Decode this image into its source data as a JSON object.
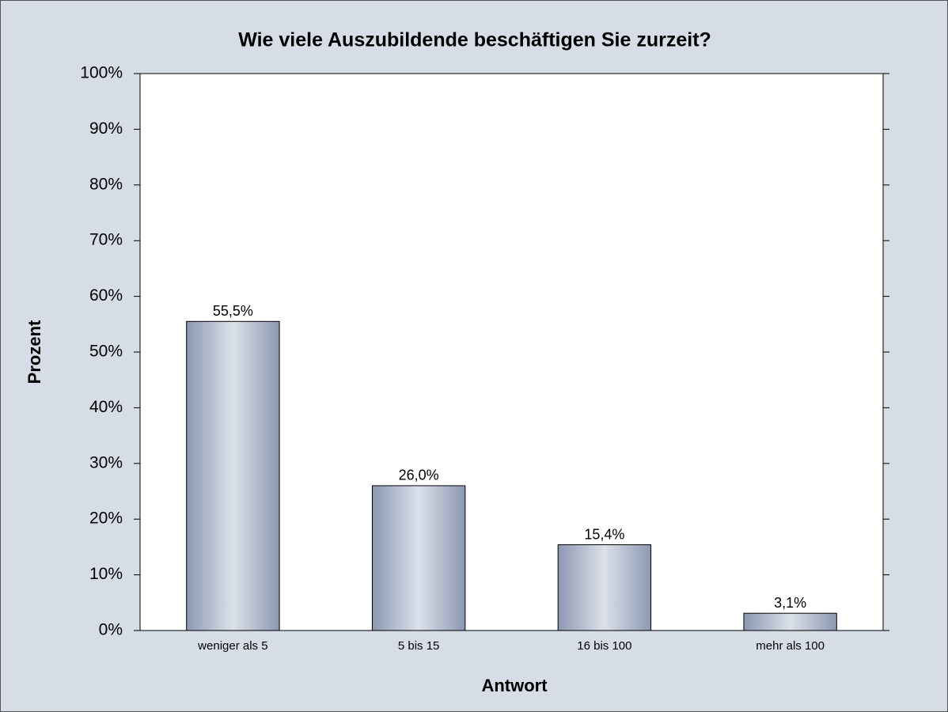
{
  "chart_data": {
    "type": "bar",
    "title": "Wie viele Auszubildende beschäftigen Sie zurzeit?",
    "x_label": "Antwort",
    "y_label": "Prozent",
    "categories": [
      "weniger als 5",
      "5 bis 15",
      "16 bis 100",
      "mehr als 100"
    ],
    "values": [
      55.5,
      26.0,
      15.4,
      3.1
    ],
    "value_labels": [
      "55,5%",
      "26,0%",
      "15,4%",
      "3,1%"
    ],
    "color": "#8c98b2",
    "ylim": [
      0,
      100
    ],
    "yticks": [
      {
        "value": 0,
        "label": "0%"
      },
      {
        "value": 10,
        "label": "10%"
      },
      {
        "value": 20,
        "label": "20%"
      },
      {
        "value": 30,
        "label": "30%"
      },
      {
        "value": 40,
        "label": "40%"
      },
      {
        "value": 50,
        "label": "50%"
      },
      {
        "value": 60,
        "label": "60%"
      },
      {
        "value": 70,
        "label": "70%"
      },
      {
        "value": 80,
        "label": "80%"
      },
      {
        "value": 90,
        "label": "90%"
      },
      {
        "value": 100,
        "label": "100%"
      }
    ],
    "grid": false
  }
}
